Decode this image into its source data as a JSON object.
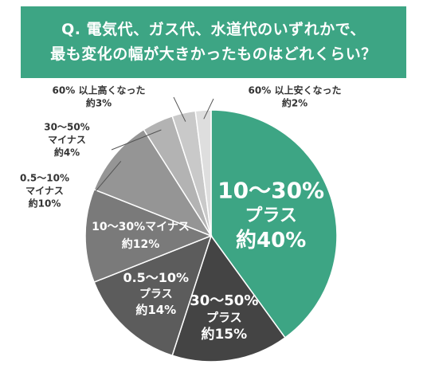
{
  "title": {
    "line1": "Q. 電気代、ガス代、水道代のいずれかで、",
    "line2": "最も変化の幅が大きかったものはどれくらい？"
  },
  "colors": {
    "banner": "#3da584",
    "text_dark": "#333333",
    "leader": "#555555"
  },
  "chart_data": {
    "type": "pie",
    "slices": [
      {
        "label": [
          "10～30%",
          "プラス"
        ],
        "value_text": "約40%",
        "value": 40,
        "color": "#3da584",
        "placement": "inside"
      },
      {
        "label": [
          "30～50%",
          "プラス"
        ],
        "value_text": "約15%",
        "value": 15,
        "color": "#444444",
        "placement": "inside"
      },
      {
        "label": [
          "0.5～10%",
          "プラス"
        ],
        "value_text": "約14%",
        "value": 14,
        "color": "#5c5c5c",
        "placement": "inside"
      },
      {
        "label": [
          "10～30%マイナス"
        ],
        "value_text": "約12%",
        "value": 12,
        "color": "#7a7a7a",
        "placement": "inside"
      },
      {
        "label": [
          "0.5～10%",
          "マイナス"
        ],
        "value_text": "約10%",
        "value": 10,
        "color": "#959595",
        "placement": "outside"
      },
      {
        "label": [
          "30～50%",
          "マイナス"
        ],
        "value_text": "約4%",
        "value": 4,
        "color": "#b3b3b3",
        "placement": "outside"
      },
      {
        "label": [
          "60% 以上高くなった"
        ],
        "value_text": "約3%",
        "value": 3,
        "color": "#c9c9c9",
        "placement": "outside"
      },
      {
        "label": [
          "60% 以上安くなった"
        ],
        "value_text": "約2%",
        "value": 2,
        "color": "#dedede",
        "placement": "outside"
      }
    ]
  }
}
